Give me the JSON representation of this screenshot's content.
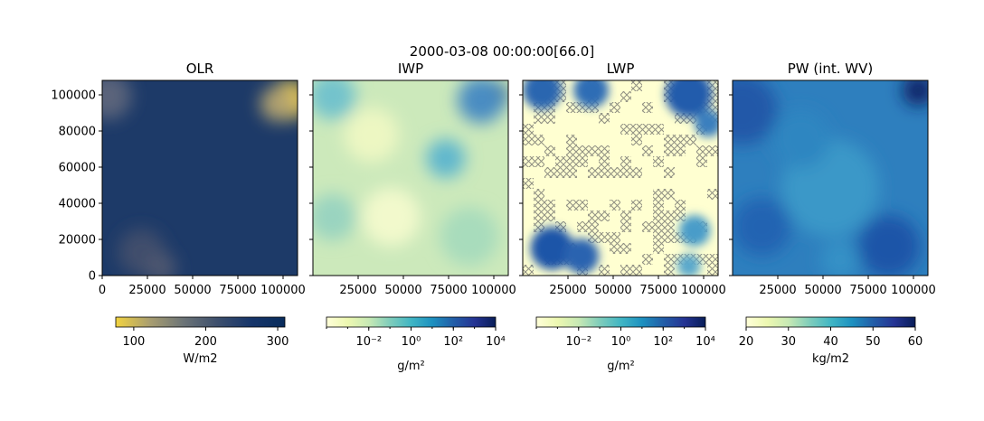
{
  "figure": {
    "suptitle": "2000-03-08 00:00:00[66.0]"
  },
  "chart_data": [
    {
      "type": "heatmap",
      "title": "OLR",
      "xlim": [
        0,
        108000
      ],
      "ylim": [
        0,
        108000
      ],
      "x_ticks": [
        "0",
        "25000",
        "50000",
        "75000",
        "100000"
      ],
      "y_ticks": [
        "0",
        "20000",
        "40000",
        "60000",
        "80000",
        "100000"
      ],
      "colormap": [
        "#f2d340",
        "#a99e70",
        "#6c7477",
        "#3d4f6d",
        "#16356a",
        "#082c5c"
      ],
      "colorbar": {
        "label": "W/m2",
        "scale": "linear",
        "range": [
          75,
          310
        ],
        "ticks": [
          "100",
          "200",
          "300"
        ]
      },
      "background": "#1d3a68",
      "blobs": [
        {
          "cx": 0.96,
          "cy": 0.9,
          "r": 0.1,
          "color": "#e8c94a"
        },
        {
          "cx": 0.9,
          "cy": 0.88,
          "r": 0.09,
          "color": "#b0a170"
        },
        {
          "cx": 0.03,
          "cy": 0.92,
          "r": 0.12,
          "color": "#5a637a"
        },
        {
          "cx": 0.2,
          "cy": 0.12,
          "r": 0.12,
          "color": "#3f4e6c"
        },
        {
          "cx": 0.3,
          "cy": 0.04,
          "r": 0.08,
          "color": "#4d5670"
        }
      ]
    },
    {
      "type": "heatmap",
      "title": "IWP",
      "xlim": [
        0,
        108000
      ],
      "ylim": [
        0,
        108000
      ],
      "x_ticks": [
        "25000",
        "50000",
        "75000",
        "100000"
      ],
      "colormap": [
        "#ffffd9",
        "#edf8b1",
        "#c7e9b4",
        "#7fcdbb",
        "#41b6c4",
        "#1d91c0",
        "#225ea8",
        "#253494",
        "#081d58"
      ],
      "colorbar": {
        "label": "g/m²",
        "scale": "log",
        "range": [
          -4,
          4
        ],
        "ticks": [
          "10⁻²",
          "10⁰",
          "10²",
          "10⁴"
        ]
      },
      "background": "#cce9bb",
      "blobs": [
        {
          "cx": 0.92,
          "cy": 0.92,
          "r": 0.08,
          "color": "#13265e"
        },
        {
          "cx": 0.86,
          "cy": 0.9,
          "r": 0.12,
          "color": "#4a8cc2"
        },
        {
          "cx": 0.68,
          "cy": 0.6,
          "r": 0.1,
          "color": "#61b7cd"
        },
        {
          "cx": 0.1,
          "cy": 0.92,
          "r": 0.12,
          "color": "#73c3cc"
        },
        {
          "cx": 0.3,
          "cy": 0.72,
          "r": 0.14,
          "color": "#edf7c2"
        },
        {
          "cx": 0.4,
          "cy": 0.3,
          "r": 0.15,
          "color": "#f2f9cc"
        },
        {
          "cx": 0.8,
          "cy": 0.2,
          "r": 0.15,
          "color": "#a8dcbc"
        },
        {
          "cx": 0.1,
          "cy": 0.3,
          "r": 0.12,
          "color": "#9ad4c0"
        }
      ]
    },
    {
      "type": "heatmap",
      "title": "LWP",
      "xlim": [
        0,
        108000
      ],
      "ylim": [
        0,
        108000
      ],
      "x_ticks": [
        "25000",
        "50000",
        "75000",
        "100000"
      ],
      "colormap": [
        "#ffffd9",
        "#edf8b1",
        "#c7e9b4",
        "#7fcdbb",
        "#41b6c4",
        "#1d91c0",
        "#225ea8",
        "#253494",
        "#081d58"
      ],
      "colorbar": {
        "label": "g/m²",
        "scale": "log",
        "range": [
          -4,
          4
        ],
        "ticks": [
          "10⁻²",
          "10⁰",
          "10²",
          "10⁴"
        ]
      },
      "background": "#ffffd1",
      "hatch_color": "#9a9a8a",
      "blobs": [
        {
          "cx": 0.1,
          "cy": 0.95,
          "r": 0.1,
          "color": "#2a66b0"
        },
        {
          "cx": 0.35,
          "cy": 0.95,
          "r": 0.09,
          "color": "#2f6db5"
        },
        {
          "cx": 0.85,
          "cy": 0.93,
          "r": 0.12,
          "color": "#245cac"
        },
        {
          "cx": 0.95,
          "cy": 0.78,
          "r": 0.07,
          "color": "#3b7fbe"
        },
        {
          "cx": 0.15,
          "cy": 0.14,
          "r": 0.11,
          "color": "#1f55a8"
        },
        {
          "cx": 0.3,
          "cy": 0.1,
          "r": 0.09,
          "color": "#2a63b0"
        },
        {
          "cx": 0.88,
          "cy": 0.23,
          "r": 0.08,
          "color": "#4a9cc9"
        },
        {
          "cx": 0.85,
          "cy": 0.05,
          "r": 0.06,
          "color": "#5aa8cc"
        }
      ]
    },
    {
      "type": "heatmap",
      "title": "PW (int. WV)",
      "xlim": [
        0,
        108000
      ],
      "ylim": [
        0,
        108000
      ],
      "x_ticks": [
        "25000",
        "50000",
        "75000",
        "100000"
      ],
      "colormap": [
        "#ffffd9",
        "#edf8b1",
        "#c7e9b4",
        "#7fcdbb",
        "#41b6c4",
        "#1d91c0",
        "#225ea8",
        "#253494",
        "#081d58"
      ],
      "colorbar": {
        "label": "kg/m2",
        "scale": "linear",
        "range": [
          20,
          60
        ],
        "ticks": [
          "20",
          "30",
          "40",
          "50",
          "60"
        ]
      },
      "background": "#2e7fbe",
      "blobs": [
        {
          "cx": 0.95,
          "cy": 0.95,
          "r": 0.08,
          "color": "#0a2466"
        },
        {
          "cx": 0.05,
          "cy": 0.85,
          "r": 0.18,
          "color": "#2058a8"
        },
        {
          "cx": 0.15,
          "cy": 0.25,
          "r": 0.15,
          "color": "#2464b2"
        },
        {
          "cx": 0.8,
          "cy": 0.15,
          "r": 0.16,
          "color": "#1f55a8"
        },
        {
          "cx": 0.5,
          "cy": 0.45,
          "r": 0.25,
          "color": "#3a98c8"
        },
        {
          "cx": 0.55,
          "cy": 0.08,
          "r": 0.1,
          "color": "#3491c6"
        },
        {
          "cx": 0.35,
          "cy": 0.7,
          "r": 0.15,
          "color": "#2f86c1"
        }
      ]
    }
  ]
}
